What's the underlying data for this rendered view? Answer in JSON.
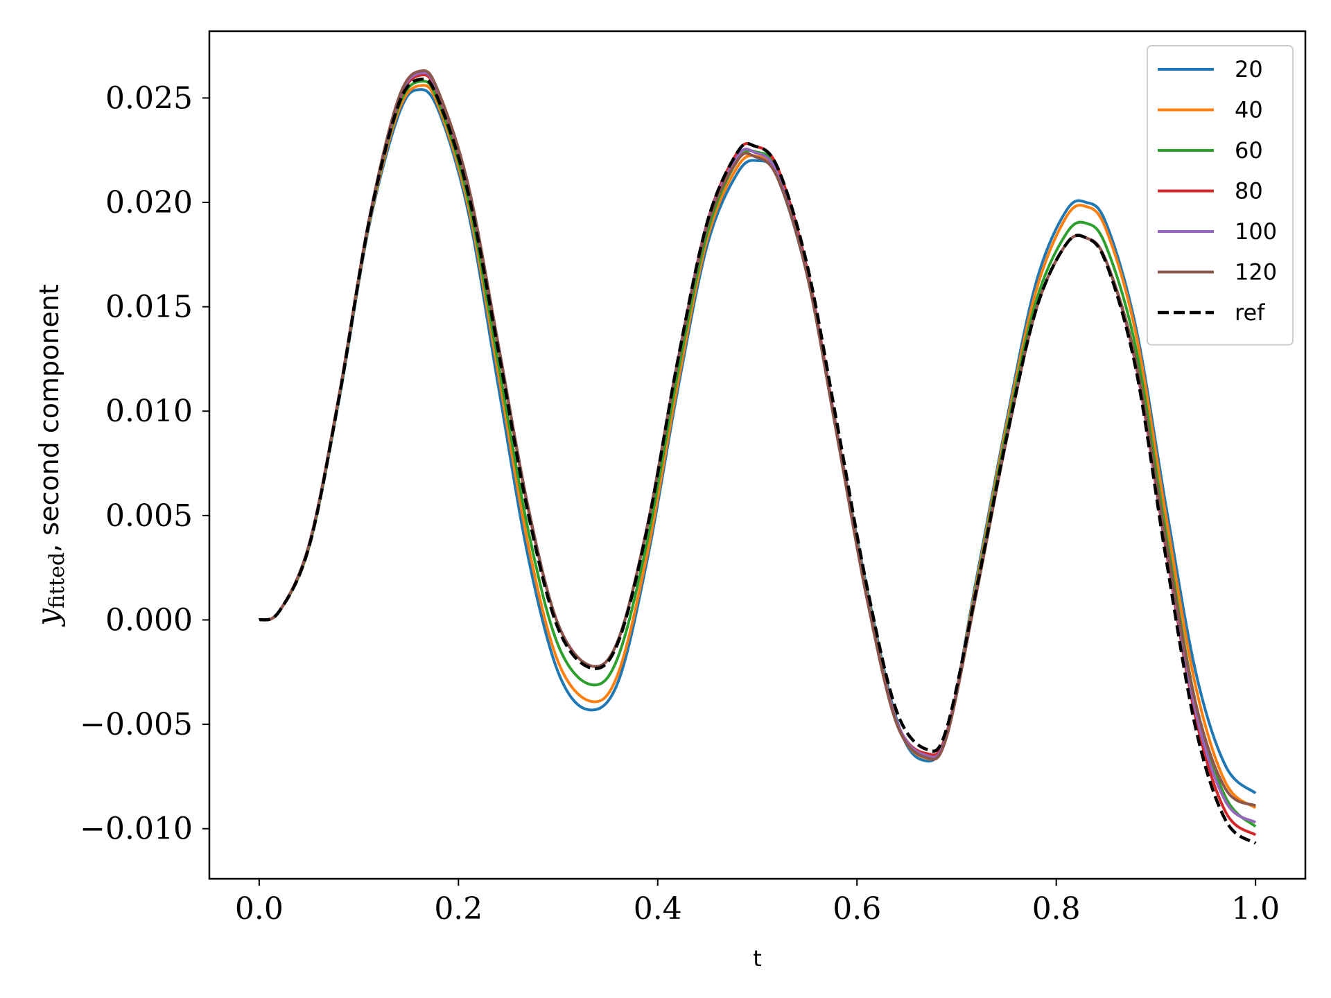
{
  "chart_data": {
    "type": "line",
    "xlabel": "t",
    "ylabel": {
      "prefix": "y",
      "subscript": "fitted",
      "suffix": ", second component"
    },
    "xlim": [
      -0.05,
      1.05
    ],
    "ylim": [
      -0.0124,
      0.0282
    ],
    "xticks": [
      0.0,
      0.2,
      0.4,
      0.6,
      0.8,
      1.0
    ],
    "xtick_labels": [
      "0.0",
      "0.2",
      "0.4",
      "0.6",
      "0.8",
      "1.0"
    ],
    "yticks": [
      -0.01,
      -0.005,
      0.0,
      0.005,
      0.01,
      0.015,
      0.02,
      0.025
    ],
    "ytick_labels": [
      "−0.010",
      "−0.005",
      "0.000",
      "0.005",
      "0.010",
      "0.015",
      "0.020",
      "0.025"
    ],
    "legend_position": "top-right",
    "grid": false,
    "series": [
      {
        "name": "20",
        "color": "#1f77b4",
        "dashed": false,
        "points": [
          [
            0.0,
            0.0
          ],
          [
            0.02,
            0.0004
          ],
          [
            0.05,
            0.0035
          ],
          [
            0.08,
            0.0105
          ],
          [
            0.11,
            0.0188
          ],
          [
            0.14,
            0.0242
          ],
          [
            0.16,
            0.0254
          ],
          [
            0.18,
            0.0244
          ],
          [
            0.21,
            0.0195
          ],
          [
            0.24,
            0.0112
          ],
          [
            0.27,
            0.003
          ],
          [
            0.3,
            -0.0025
          ],
          [
            0.33,
            -0.0043
          ],
          [
            0.36,
            -0.003
          ],
          [
            0.39,
            0.003
          ],
          [
            0.42,
            0.011
          ],
          [
            0.45,
            0.018
          ],
          [
            0.48,
            0.0214
          ],
          [
            0.5,
            0.022
          ],
          [
            0.52,
            0.0212
          ],
          [
            0.55,
            0.0165
          ],
          [
            0.58,
            0.009
          ],
          [
            0.61,
            0.0015
          ],
          [
            0.64,
            -0.0048
          ],
          [
            0.665,
            -0.0067
          ],
          [
            0.69,
            -0.0055
          ],
          [
            0.72,
            0.002
          ],
          [
            0.75,
            0.0095
          ],
          [
            0.78,
            0.0162
          ],
          [
            0.81,
            0.0196
          ],
          [
            0.83,
            0.02
          ],
          [
            0.85,
            0.019
          ],
          [
            0.88,
            0.014
          ],
          [
            0.91,
            0.0055
          ],
          [
            0.94,
            -0.0025
          ],
          [
            0.97,
            -0.007
          ],
          [
            1.0,
            -0.0083
          ]
        ]
      },
      {
        "name": "40",
        "color": "#ff7f0e",
        "dashed": false,
        "points": [
          [
            0.0,
            0.0
          ],
          [
            0.02,
            0.0004
          ],
          [
            0.05,
            0.0035
          ],
          [
            0.08,
            0.0106
          ],
          [
            0.11,
            0.0189
          ],
          [
            0.14,
            0.0244
          ],
          [
            0.163,
            0.0256
          ],
          [
            0.18,
            0.0246
          ],
          [
            0.21,
            0.0198
          ],
          [
            0.24,
            0.0118
          ],
          [
            0.27,
            0.0036
          ],
          [
            0.3,
            -0.002
          ],
          [
            0.333,
            -0.0039
          ],
          [
            0.36,
            -0.0026
          ],
          [
            0.39,
            0.0033
          ],
          [
            0.42,
            0.0113
          ],
          [
            0.45,
            0.0183
          ],
          [
            0.48,
            0.0217
          ],
          [
            0.5,
            0.0222
          ],
          [
            0.52,
            0.0213
          ],
          [
            0.55,
            0.0166
          ],
          [
            0.58,
            0.009
          ],
          [
            0.61,
            0.0013
          ],
          [
            0.64,
            -0.0049
          ],
          [
            0.668,
            -0.0066
          ],
          [
            0.69,
            -0.0055
          ],
          [
            0.72,
            0.0018
          ],
          [
            0.75,
            0.0093
          ],
          [
            0.78,
            0.0158
          ],
          [
            0.81,
            0.0193
          ],
          [
            0.83,
            0.0198
          ],
          [
            0.85,
            0.0187
          ],
          [
            0.88,
            0.0137
          ],
          [
            0.91,
            0.005
          ],
          [
            0.94,
            -0.0032
          ],
          [
            0.97,
            -0.0078
          ],
          [
            1.0,
            -0.009
          ]
        ]
      },
      {
        "name": "60",
        "color": "#2ca02c",
        "dashed": false,
        "points": [
          [
            0.0,
            0.0
          ],
          [
            0.02,
            0.0004
          ],
          [
            0.05,
            0.0035
          ],
          [
            0.08,
            0.0106
          ],
          [
            0.11,
            0.019
          ],
          [
            0.14,
            0.0246
          ],
          [
            0.163,
            0.0258
          ],
          [
            0.18,
            0.0248
          ],
          [
            0.21,
            0.0201
          ],
          [
            0.24,
            0.0123
          ],
          [
            0.27,
            0.0043
          ],
          [
            0.3,
            -0.0012
          ],
          [
            0.333,
            -0.0031
          ],
          [
            0.36,
            -0.0018
          ],
          [
            0.39,
            0.0039
          ],
          [
            0.42,
            0.0118
          ],
          [
            0.45,
            0.0186
          ],
          [
            0.48,
            0.022
          ],
          [
            0.5,
            0.0224
          ],
          [
            0.52,
            0.0215
          ],
          [
            0.55,
            0.0167
          ],
          [
            0.58,
            0.009
          ],
          [
            0.61,
            0.0012
          ],
          [
            0.64,
            -0.0049
          ],
          [
            0.67,
            -0.0065
          ],
          [
            0.69,
            -0.0055
          ],
          [
            0.72,
            0.0016
          ],
          [
            0.75,
            0.009
          ],
          [
            0.78,
            0.0153
          ],
          [
            0.81,
            0.0185
          ],
          [
            0.83,
            0.019
          ],
          [
            0.85,
            0.0179
          ],
          [
            0.88,
            0.013
          ],
          [
            0.91,
            0.0042
          ],
          [
            0.94,
            -0.004
          ],
          [
            0.97,
            -0.0085
          ],
          [
            1.0,
            -0.0099
          ]
        ]
      },
      {
        "name": "80",
        "color": "#d62728",
        "dashed": false,
        "points": [
          [
            0.0,
            0.0
          ],
          [
            0.02,
            0.0004
          ],
          [
            0.05,
            0.0036
          ],
          [
            0.08,
            0.0107
          ],
          [
            0.11,
            0.0191
          ],
          [
            0.14,
            0.0248
          ],
          [
            0.163,
            0.0261
          ],
          [
            0.18,
            0.0251
          ],
          [
            0.21,
            0.0206
          ],
          [
            0.24,
            0.0131
          ],
          [
            0.27,
            0.0053
          ],
          [
            0.3,
            -0.0002
          ],
          [
            0.333,
            -0.0022
          ],
          [
            0.36,
            -0.001
          ],
          [
            0.39,
            0.0046
          ],
          [
            0.42,
            0.0124
          ],
          [
            0.45,
            0.0191
          ],
          [
            0.48,
            0.0224
          ],
          [
            0.497,
            0.0227
          ],
          [
            0.52,
            0.0217
          ],
          [
            0.55,
            0.0168
          ],
          [
            0.58,
            0.009
          ],
          [
            0.61,
            0.0011
          ],
          [
            0.64,
            -0.0049
          ],
          [
            0.67,
            -0.0064
          ],
          [
            0.69,
            -0.0054
          ],
          [
            0.72,
            0.0014
          ],
          [
            0.75,
            0.0087
          ],
          [
            0.78,
            0.0149
          ],
          [
            0.81,
            0.018
          ],
          [
            0.83,
            0.0183
          ],
          [
            0.85,
            0.0172
          ],
          [
            0.88,
            0.0122
          ],
          [
            0.91,
            0.0034
          ],
          [
            0.94,
            -0.0047
          ],
          [
            0.97,
            -0.0092
          ],
          [
            1.0,
            -0.0103
          ]
        ]
      },
      {
        "name": "100",
        "color": "#9467bd",
        "dashed": false,
        "points": [
          [
            0.0,
            0.0
          ],
          [
            0.02,
            0.0004
          ],
          [
            0.05,
            0.0036
          ],
          [
            0.08,
            0.0107
          ],
          [
            0.11,
            0.0191
          ],
          [
            0.14,
            0.0249
          ],
          [
            0.163,
            0.0262
          ],
          [
            0.18,
            0.0252
          ],
          [
            0.21,
            0.0207
          ],
          [
            0.24,
            0.0132
          ],
          [
            0.27,
            0.0054
          ],
          [
            0.3,
            -0.0002
          ],
          [
            0.333,
            -0.0022
          ],
          [
            0.36,
            -0.001
          ],
          [
            0.39,
            0.0046
          ],
          [
            0.42,
            0.0124
          ],
          [
            0.45,
            0.019
          ],
          [
            0.48,
            0.0222
          ],
          [
            0.497,
            0.0224
          ],
          [
            0.52,
            0.0214
          ],
          [
            0.55,
            0.0166
          ],
          [
            0.58,
            0.0089
          ],
          [
            0.61,
            0.0011
          ],
          [
            0.64,
            -0.0049
          ],
          [
            0.67,
            -0.0065
          ],
          [
            0.69,
            -0.0055
          ],
          [
            0.72,
            0.0014
          ],
          [
            0.75,
            0.0087
          ],
          [
            0.78,
            0.0149
          ],
          [
            0.81,
            0.018
          ],
          [
            0.83,
            0.0183
          ],
          [
            0.85,
            0.0172
          ],
          [
            0.88,
            0.0123
          ],
          [
            0.91,
            0.0036
          ],
          [
            0.94,
            -0.0044
          ],
          [
            0.97,
            -0.0087
          ],
          [
            1.0,
            -0.0097
          ]
        ]
      },
      {
        "name": "120",
        "color": "#8c564b",
        "dashed": false,
        "points": [
          [
            0.0,
            0.0
          ],
          [
            0.02,
            0.0004
          ],
          [
            0.05,
            0.0036
          ],
          [
            0.08,
            0.0107
          ],
          [
            0.11,
            0.0191
          ],
          [
            0.14,
            0.025
          ],
          [
            0.163,
            0.0263
          ],
          [
            0.18,
            0.0253
          ],
          [
            0.21,
            0.0208
          ],
          [
            0.24,
            0.0132
          ],
          [
            0.27,
            0.0054
          ],
          [
            0.3,
            -0.0002
          ],
          [
            0.333,
            -0.0022
          ],
          [
            0.36,
            -0.001
          ],
          [
            0.39,
            0.0046
          ],
          [
            0.42,
            0.0123
          ],
          [
            0.45,
            0.0189
          ],
          [
            0.48,
            0.022
          ],
          [
            0.497,
            0.0222
          ],
          [
            0.52,
            0.0212
          ],
          [
            0.55,
            0.0165
          ],
          [
            0.58,
            0.0088
          ],
          [
            0.61,
            0.001
          ],
          [
            0.64,
            -0.005
          ],
          [
            0.67,
            -0.0066
          ],
          [
            0.69,
            -0.0056
          ],
          [
            0.72,
            0.0013
          ],
          [
            0.75,
            0.0086
          ],
          [
            0.78,
            0.0149
          ],
          [
            0.81,
            0.018
          ],
          [
            0.83,
            0.0183
          ],
          [
            0.85,
            0.0172
          ],
          [
            0.88,
            0.0124
          ],
          [
            0.91,
            0.0038
          ],
          [
            0.94,
            -0.004
          ],
          [
            0.97,
            -0.0081
          ],
          [
            1.0,
            -0.0089
          ]
        ]
      },
      {
        "name": "ref",
        "color": "#000000",
        "dashed": true,
        "points": [
          [
            0.0,
            0.0
          ],
          [
            0.02,
            0.0004
          ],
          [
            0.05,
            0.0035
          ],
          [
            0.08,
            0.0106
          ],
          [
            0.11,
            0.019
          ],
          [
            0.14,
            0.0247
          ],
          [
            0.163,
            0.0259
          ],
          [
            0.18,
            0.0249
          ],
          [
            0.21,
            0.0204
          ],
          [
            0.24,
            0.0129
          ],
          [
            0.27,
            0.0051
          ],
          [
            0.3,
            -0.0004
          ],
          [
            0.333,
            -0.0023
          ],
          [
            0.36,
            -0.0011
          ],
          [
            0.39,
            0.0045
          ],
          [
            0.42,
            0.0124
          ],
          [
            0.45,
            0.0191
          ],
          [
            0.48,
            0.0224
          ],
          [
            0.497,
            0.0227
          ],
          [
            0.52,
            0.0217
          ],
          [
            0.55,
            0.017
          ],
          [
            0.58,
            0.0094
          ],
          [
            0.61,
            0.0016
          ],
          [
            0.64,
            -0.0044
          ],
          [
            0.67,
            -0.0062
          ],
          [
            0.69,
            -0.0052
          ],
          [
            0.72,
            0.0015
          ],
          [
            0.75,
            0.0087
          ],
          [
            0.78,
            0.0149
          ],
          [
            0.81,
            0.018
          ],
          [
            0.83,
            0.0183
          ],
          [
            0.85,
            0.0171
          ],
          [
            0.88,
            0.012
          ],
          [
            0.91,
            0.003
          ],
          [
            0.94,
            -0.0052
          ],
          [
            0.97,
            -0.0096
          ],
          [
            1.0,
            -0.0107
          ]
        ]
      }
    ]
  }
}
